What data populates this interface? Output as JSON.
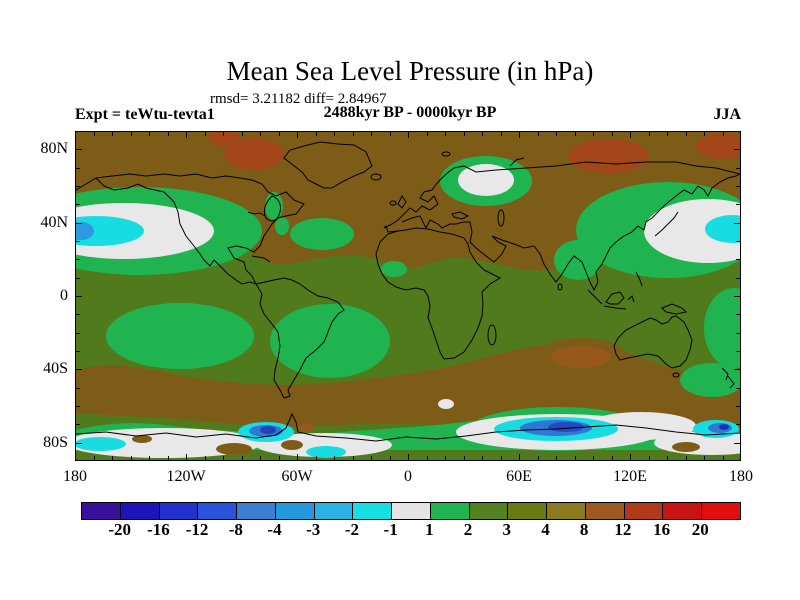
{
  "header": {
    "title": "Mean Sea Level Pressure (in hPa)",
    "stats": "rmsd= 3.21182 diff= 2.84967",
    "period": "2488kyr BP - 0000kyr BP",
    "experiment": "Expt = teWtu-tevta1",
    "season": "JJA"
  },
  "chart_data": {
    "type": "heatmap",
    "subtype": "filled-contour-world-map",
    "title": "Mean Sea Level Pressure (in hPa)",
    "stats": {
      "rmsd": 3.21182,
      "diff": 2.84967
    },
    "comparison": "2488kyr BP - 0000kyr BP",
    "experiment": "teWtu-tevta1",
    "season": "JJA",
    "units": "hPa",
    "projection": "equirectangular",
    "lon_range": [
      -180,
      180
    ],
    "lat_range": [
      -90,
      90
    ],
    "grid": false,
    "x_ticks": [
      {
        "lon": -180,
        "label": "180"
      },
      {
        "lon": -120,
        "label": "120W"
      },
      {
        "lon": -60,
        "label": "60W"
      },
      {
        "lon": 0,
        "label": "0"
      },
      {
        "lon": 60,
        "label": "60E"
      },
      {
        "lon": 120,
        "label": "120E"
      },
      {
        "lon": 180,
        "label": "180"
      }
    ],
    "y_ticks": [
      {
        "lat": 80,
        "label": "80N"
      },
      {
        "lat": 40,
        "label": "40N"
      },
      {
        "lat": 0,
        "label": "0"
      },
      {
        "lat": -40,
        "label": "40S"
      },
      {
        "lat": -80,
        "label": "80S"
      }
    ],
    "minor_tick_interval_deg": 10,
    "colorbar": {
      "orientation": "horizontal",
      "boundary_labels": [
        "-20",
        "-16",
        "-12",
        "-8",
        "-4",
        "-3",
        "-2",
        "-1",
        "1",
        "2",
        "3",
        "4",
        "8",
        "12",
        "16",
        "20"
      ],
      "colors": [
        "#38109b",
        "#1c16b8",
        "#2132cd",
        "#2a52dd",
        "#3a7fd2",
        "#2498dc",
        "#29b2e5",
        "#16dfe2",
        "#e4e4e4",
        "#1fb450",
        "#55801f",
        "#697a12",
        "#8c7a1e",
        "#9c5a1e",
        "#b0391b",
        "#c81414",
        "#e00e0e"
      ]
    },
    "anomaly_regions": [
      {
        "region": "North Pacific ~40N (wraps map edges)",
        "value_range_hPa": [
          -4,
          1
        ]
      },
      {
        "region": "Barents Sea ~75N",
        "value_range_hPa": [
          -1,
          1
        ]
      },
      {
        "region": "Northern hemisphere land belt",
        "value_range_hPa": [
          4,
          8
        ]
      },
      {
        "region": "Canadian Arctic and North Siberia spots",
        "value_range_hPa": [
          8,
          12
        ]
      },
      {
        "region": "Southern mid-latitude belt",
        "value_range_hPa": [
          4,
          8
        ]
      },
      {
        "region": "Antarctic coastal band",
        "value_range_hPa": [
          -8,
          1
        ]
      },
      {
        "region": "Tropics and southern oceans background",
        "value_range_hPa": [
          1,
          3
        ]
      }
    ]
  }
}
